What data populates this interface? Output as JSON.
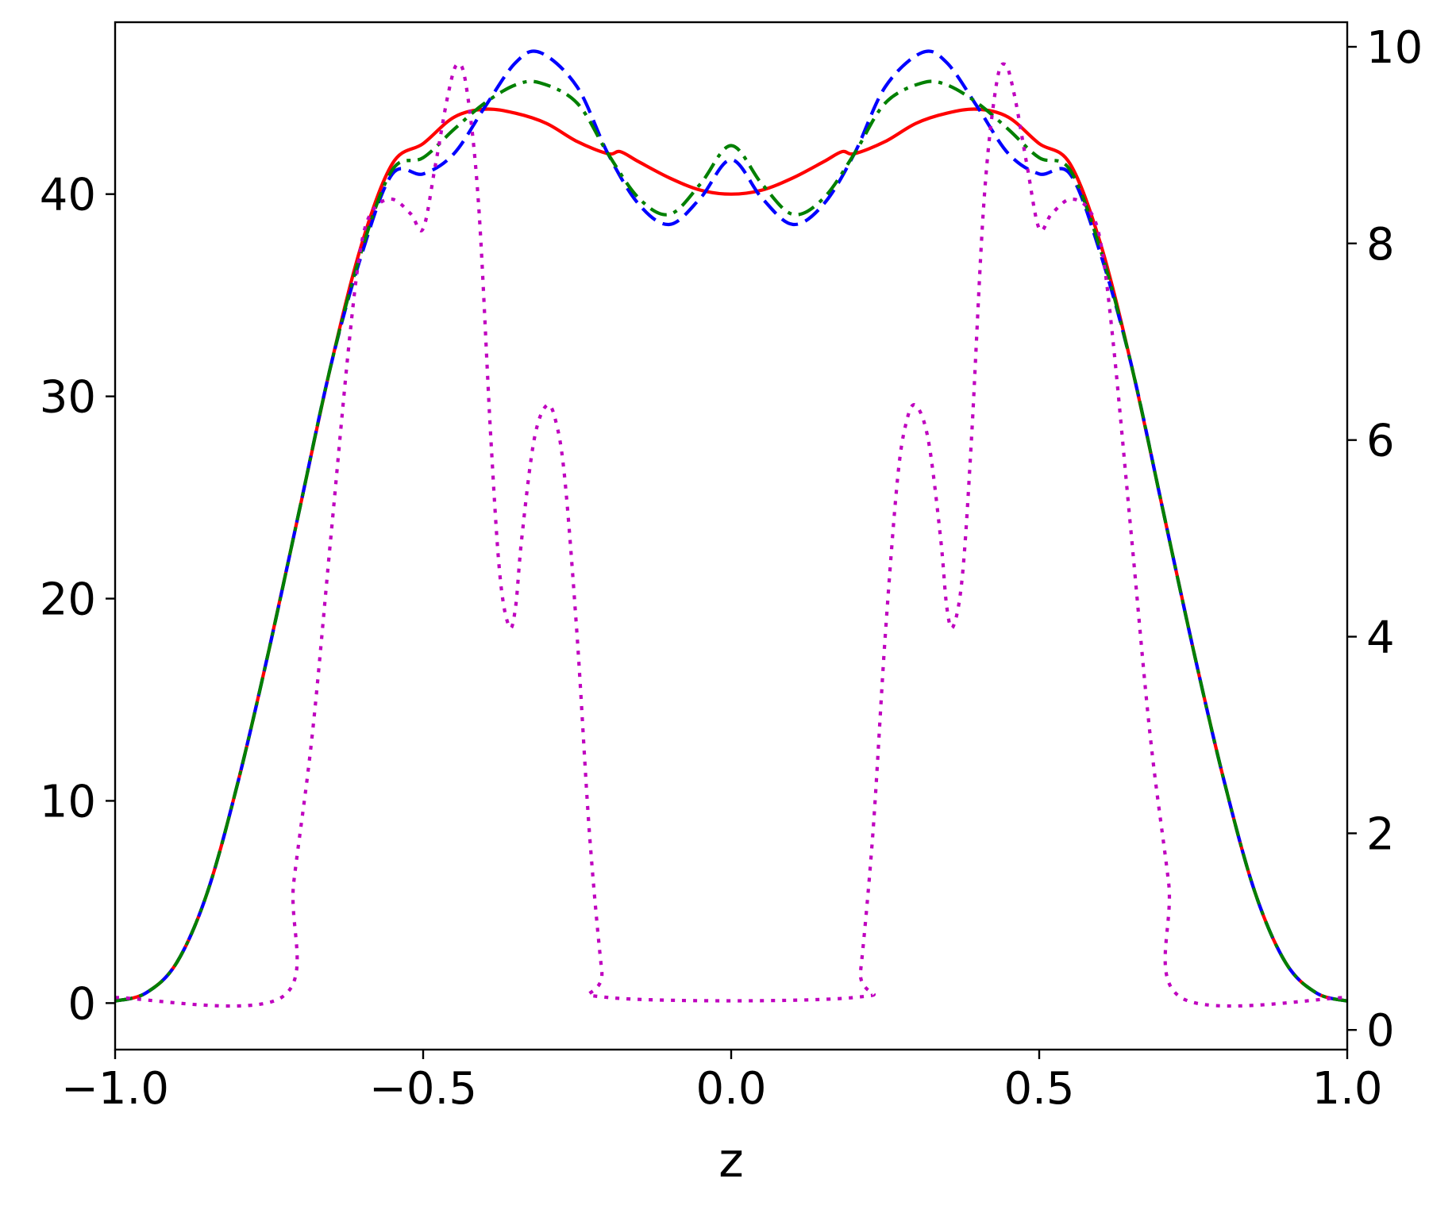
{
  "chart_data": {
    "type": "line",
    "title": "",
    "xlabel": "z",
    "ylabel_left": "",
    "ylabel_right": "",
    "xlim": [
      -1.0,
      1.0
    ],
    "ylim_left": [
      -2.3,
      48.5
    ],
    "ylim_right": [
      -0.2,
      10.25
    ],
    "grid": false,
    "legend": "none",
    "x_ticks": [
      "−1.0",
      "−0.5",
      "0.0",
      "0.5",
      "1.0"
    ],
    "y_left_ticks": [
      "0",
      "10",
      "20",
      "30",
      "40"
    ],
    "y_right_ticks": [
      "0",
      "2",
      "4",
      "6",
      "8",
      "10"
    ],
    "series": [
      {
        "axis": "left",
        "color": "#ff0000",
        "style": "solid",
        "points": [
          [
            -1.0,
            0.1
          ],
          [
            -0.95,
            0.5
          ],
          [
            -0.9,
            2.0
          ],
          [
            -0.85,
            5.5
          ],
          [
            -0.8,
            11.0
          ],
          [
            -0.75,
            17.5
          ],
          [
            -0.7,
            24.5
          ],
          [
            -0.65,
            31.5
          ],
          [
            -0.6,
            37.5
          ],
          [
            -0.55,
            41.5
          ],
          [
            -0.5,
            42.5
          ],
          [
            -0.45,
            43.8
          ],
          [
            -0.4,
            44.2
          ],
          [
            -0.35,
            44.0
          ],
          [
            -0.3,
            43.5
          ],
          [
            -0.25,
            42.6
          ],
          [
            -0.2,
            42.0
          ],
          [
            -0.18,
            42.1
          ],
          [
            -0.15,
            41.6
          ],
          [
            -0.1,
            40.8
          ],
          [
            -0.05,
            40.2
          ],
          [
            0.0,
            40.0
          ],
          [
            0.05,
            40.2
          ],
          [
            0.1,
            40.8
          ],
          [
            0.15,
            41.6
          ],
          [
            0.18,
            42.1
          ],
          [
            0.2,
            42.0
          ],
          [
            0.25,
            42.6
          ],
          [
            0.3,
            43.5
          ],
          [
            0.35,
            44.0
          ],
          [
            0.4,
            44.2
          ],
          [
            0.45,
            43.8
          ],
          [
            0.5,
            42.5
          ],
          [
            0.55,
            41.5
          ],
          [
            0.6,
            37.5
          ],
          [
            0.65,
            31.5
          ],
          [
            0.7,
            24.5
          ],
          [
            0.75,
            17.5
          ],
          [
            0.8,
            11.0
          ],
          [
            0.85,
            5.5
          ],
          [
            0.9,
            2.0
          ],
          [
            0.95,
            0.5
          ],
          [
            1.0,
            0.1
          ]
        ]
      },
      {
        "axis": "left",
        "color": "#0000ff",
        "style": "dashed",
        "points": [
          [
            -1.0,
            0.1
          ],
          [
            -0.95,
            0.5
          ],
          [
            -0.9,
            2.0
          ],
          [
            -0.85,
            5.5
          ],
          [
            -0.8,
            11.0
          ],
          [
            -0.75,
            17.5
          ],
          [
            -0.7,
            24.5
          ],
          [
            -0.65,
            31.5
          ],
          [
            -0.6,
            37.0
          ],
          [
            -0.55,
            41.0
          ],
          [
            -0.5,
            41.0
          ],
          [
            -0.45,
            42.0
          ],
          [
            -0.4,
            44.3
          ],
          [
            -0.35,
            46.5
          ],
          [
            -0.31,
            47.0
          ],
          [
            -0.25,
            45.3
          ],
          [
            -0.2,
            42.0
          ],
          [
            -0.15,
            39.5
          ],
          [
            -0.1,
            38.5
          ],
          [
            -0.05,
            39.8
          ],
          [
            0.0,
            41.7
          ],
          [
            0.05,
            39.8
          ],
          [
            0.1,
            38.5
          ],
          [
            0.15,
            39.5
          ],
          [
            0.2,
            42.0
          ],
          [
            0.25,
            45.3
          ],
          [
            0.31,
            47.0
          ],
          [
            0.35,
            46.5
          ],
          [
            0.4,
            44.3
          ],
          [
            0.45,
            42.0
          ],
          [
            0.5,
            41.0
          ],
          [
            0.55,
            41.0
          ],
          [
            0.6,
            37.0
          ],
          [
            0.65,
            31.5
          ],
          [
            0.7,
            24.5
          ],
          [
            0.75,
            17.5
          ],
          [
            0.8,
            11.0
          ],
          [
            0.85,
            5.5
          ],
          [
            0.9,
            2.0
          ],
          [
            0.95,
            0.5
          ],
          [
            1.0,
            0.1
          ]
        ]
      },
      {
        "axis": "left",
        "color": "#008000",
        "style": "dashdot",
        "points": [
          [
            -1.0,
            0.1
          ],
          [
            -0.95,
            0.5
          ],
          [
            -0.9,
            2.0
          ],
          [
            -0.85,
            5.5
          ],
          [
            -0.8,
            11.0
          ],
          [
            -0.75,
            17.5
          ],
          [
            -0.7,
            24.5
          ],
          [
            -0.65,
            31.5
          ],
          [
            -0.6,
            37.2
          ],
          [
            -0.55,
            41.2
          ],
          [
            -0.5,
            41.8
          ],
          [
            -0.45,
            43.2
          ],
          [
            -0.4,
            44.5
          ],
          [
            -0.35,
            45.4
          ],
          [
            -0.31,
            45.5
          ],
          [
            -0.25,
            44.5
          ],
          [
            -0.2,
            42.0
          ],
          [
            -0.15,
            39.8
          ],
          [
            -0.1,
            39.0
          ],
          [
            -0.05,
            40.5
          ],
          [
            0.0,
            42.4
          ],
          [
            0.05,
            40.5
          ],
          [
            0.1,
            39.0
          ],
          [
            0.15,
            39.8
          ],
          [
            0.2,
            42.0
          ],
          [
            0.25,
            44.5
          ],
          [
            0.31,
            45.5
          ],
          [
            0.35,
            45.4
          ],
          [
            0.4,
            44.5
          ],
          [
            0.45,
            43.2
          ],
          [
            0.5,
            41.8
          ],
          [
            0.55,
            41.2
          ],
          [
            0.6,
            37.2
          ],
          [
            0.65,
            31.5
          ],
          [
            0.7,
            24.5
          ],
          [
            0.75,
            17.5
          ],
          [
            0.8,
            11.0
          ],
          [
            0.85,
            5.5
          ],
          [
            0.9,
            2.0
          ],
          [
            0.95,
            0.5
          ],
          [
            1.0,
            0.1
          ]
        ]
      },
      {
        "axis": "right",
        "color": "#bf00bf",
        "style": "dotted",
        "points": [
          [
            -1.0,
            0.33
          ],
          [
            -0.73,
            0.33
          ],
          [
            -0.71,
            1.5
          ],
          [
            -0.68,
            3.0
          ],
          [
            -0.65,
            5.0
          ],
          [
            -0.62,
            7.0
          ],
          [
            -0.6,
            8.0
          ],
          [
            -0.58,
            8.35
          ],
          [
            -0.55,
            8.45
          ],
          [
            -0.52,
            8.3
          ],
          [
            -0.5,
            8.15
          ],
          [
            -0.48,
            8.8
          ],
          [
            -0.46,
            9.5
          ],
          [
            -0.445,
            9.82
          ],
          [
            -0.43,
            9.6
          ],
          [
            -0.41,
            8.4
          ],
          [
            -0.39,
            6.0
          ],
          [
            -0.375,
            4.6
          ],
          [
            -0.36,
            4.1
          ],
          [
            -0.35,
            4.3
          ],
          [
            -0.34,
            5.0
          ],
          [
            -0.32,
            6.0
          ],
          [
            -0.3,
            6.35
          ],
          [
            -0.285,
            6.2
          ],
          [
            -0.27,
            5.6
          ],
          [
            -0.25,
            4.0
          ],
          [
            -0.23,
            2.0
          ],
          [
            -0.21,
            0.6
          ],
          [
            -0.2,
            0.33
          ],
          [
            0.2,
            0.33
          ],
          [
            0.21,
            0.6
          ],
          [
            0.23,
            2.0
          ],
          [
            0.25,
            4.0
          ],
          [
            0.27,
            5.6
          ],
          [
            0.285,
            6.2
          ],
          [
            0.3,
            6.35
          ],
          [
            0.32,
            6.0
          ],
          [
            0.34,
            5.0
          ],
          [
            0.35,
            4.3
          ],
          [
            0.36,
            4.1
          ],
          [
            0.375,
            4.6
          ],
          [
            0.39,
            6.0
          ],
          [
            0.41,
            8.4
          ],
          [
            0.43,
            9.6
          ],
          [
            0.445,
            9.82
          ],
          [
            0.46,
            9.5
          ],
          [
            0.48,
            8.8
          ],
          [
            0.5,
            8.15
          ],
          [
            0.52,
            8.3
          ],
          [
            0.55,
            8.45
          ],
          [
            0.58,
            8.35
          ],
          [
            0.6,
            8.0
          ],
          [
            0.62,
            7.0
          ],
          [
            0.65,
            5.0
          ],
          [
            0.68,
            3.0
          ],
          [
            0.71,
            1.5
          ],
          [
            0.73,
            0.33
          ],
          [
            1.0,
            0.33
          ]
        ]
      }
    ]
  }
}
